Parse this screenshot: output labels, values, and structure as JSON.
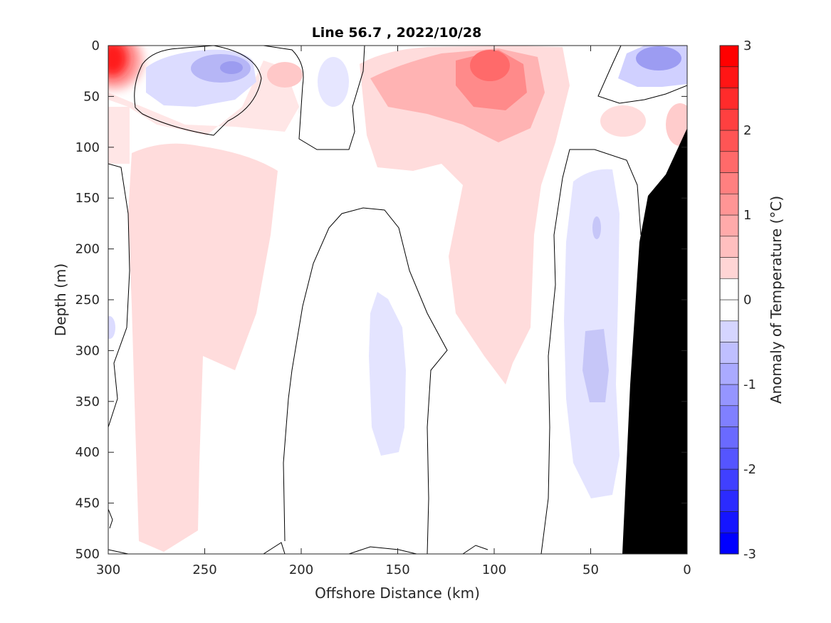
{
  "chart_data": {
    "type": "heatmap",
    "title": "Line 56.7 , 2022/10/28",
    "xlabel": "Offshore Distance (km)",
    "ylabel": "Depth (m)",
    "xlim": [
      300,
      0
    ],
    "ylim": [
      0,
      500
    ],
    "x_reversed": true,
    "y_reversed": true,
    "x_ticks": [
      "300",
      "250",
      "200",
      "150",
      "100",
      "50",
      "0"
    ],
    "y_ticks": [
      "0",
      "50",
      "100",
      "150",
      "200",
      "250",
      "300",
      "350",
      "400",
      "450",
      "500"
    ],
    "colorbar": {
      "label": "Anomaly of Temperature (°C)",
      "range": [
        -3,
        3
      ],
      "ticks": [
        "3",
        "2",
        "1",
        "0",
        "-1",
        "-2",
        "-3"
      ],
      "levels": [
        -3,
        -2.75,
        -2.5,
        -2.25,
        -2,
        -1.75,
        -1.5,
        -1.25,
        -1,
        -0.75,
        -0.5,
        -0.25,
        0,
        0.25,
        0.5,
        0.75,
        1,
        1.25,
        1.5,
        1.75,
        2,
        2.25,
        2.5,
        2.75,
        3
      ],
      "min_color": "#0000ff",
      "zero_color": "#ffffff",
      "max_color": "#ff0000"
    },
    "bathymetry_color": "#000000",
    "grid": false,
    "legend": "none",
    "anomaly_features": [
      {
        "x_center": 297,
        "depth_center": 20,
        "value": 2.7
      },
      {
        "x_center": 100,
        "depth_center": 25,
        "value": 1.9
      },
      {
        "x_center": 110,
        "depth_center": 60,
        "value": 1.3
      },
      {
        "x_center": 13,
        "depth_center": 12,
        "value": -1.3
      },
      {
        "x_center": 236,
        "depth_center": 25,
        "value": -0.8
      },
      {
        "x_center": 257,
        "depth_center": 210,
        "value": 0.45
      },
      {
        "x_center": 95,
        "depth_center": 250,
        "value": 0.3
      },
      {
        "x_center": 158,
        "depth_center": 310,
        "value": -0.3
      },
      {
        "x_center": 42,
        "depth_center": 330,
        "value": -0.45
      },
      {
        "x_center": 270,
        "depth_center": 420,
        "value": 0.2
      }
    ]
  }
}
